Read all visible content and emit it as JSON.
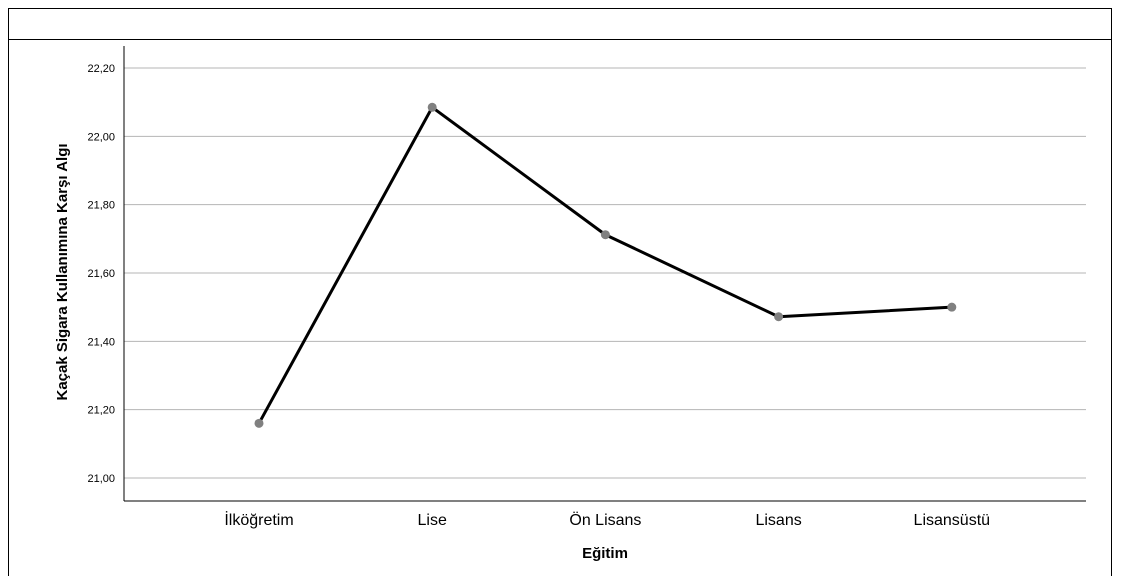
{
  "chart_data": {
    "type": "line",
    "categories": [
      "İlköğretim",
      "Lise",
      "Ön Lisans",
      "Lisans",
      "Lisansüstü"
    ],
    "values": [
      21.16,
      22.085,
      21.712,
      21.472,
      21.5
    ],
    "xlabel": "Eğitim",
    "ylabel": "Kaçak Sigara Kullanımına Karşı Algı",
    "ylim": [
      21.0,
      22.2
    ],
    "yticks": [
      "21,00",
      "21,20",
      "21,40",
      "21,60",
      "21,80",
      "22,00",
      "22,20"
    ],
    "grid": true,
    "line_color": "#000000",
    "marker_color": "#808080"
  }
}
